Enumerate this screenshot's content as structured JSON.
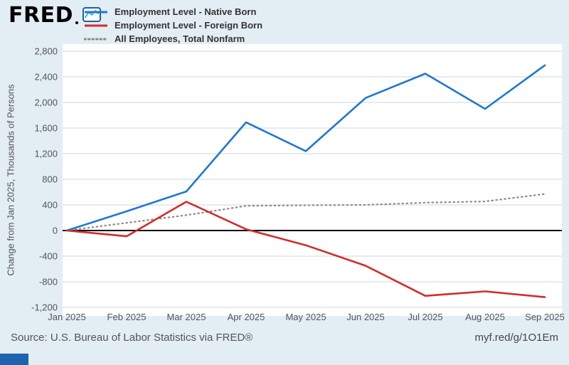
{
  "header": {
    "logo_text": "FRED"
  },
  "chart_data": {
    "type": "line",
    "x": [
      "Jan 2025",
      "Feb 2025",
      "Mar 2025",
      "Apr 2025",
      "May 2025",
      "Jun 2025",
      "Jul 2025",
      "Aug 2025",
      "Sep 2025"
    ],
    "series": [
      {
        "name": "Employment Level - Native Born",
        "color": "#2077d4",
        "style": "solid",
        "values": [
          0,
          300,
          610,
          1690,
          1240,
          2070,
          2450,
          1900,
          2580
        ]
      },
      {
        "name": "Employment Level - Foreign Born",
        "color": "#d32b2b",
        "style": "solid",
        "values": [
          0,
          -90,
          450,
          20,
          -230,
          -550,
          -1020,
          -950,
          -1040
        ]
      },
      {
        "name": "All Employees, Total Nonfarm",
        "color": "#8a8a8a",
        "style": "dotted",
        "values": [
          0,
          120,
          240,
          385,
          395,
          400,
          435,
          455,
          570
        ]
      }
    ],
    "title": "",
    "xlabel": "",
    "ylabel": "Change from Jan 2025, Thousands of Persons",
    "ylim": [
      -1200,
      2800
    ],
    "ytick_step": 400,
    "grid": "horizontal",
    "zero_line": true,
    "legend_position": "top"
  },
  "footer": {
    "source": "Source: U.S. Bureau of Labor Statistics via FRED®",
    "link": "myf.red/g/1O1Em"
  },
  "colors": {
    "background": "#e3edf4",
    "plot_background": "#ffffff",
    "grid": "#cfd6dc",
    "zero_line": "#000000",
    "axis_text": "#555555"
  }
}
